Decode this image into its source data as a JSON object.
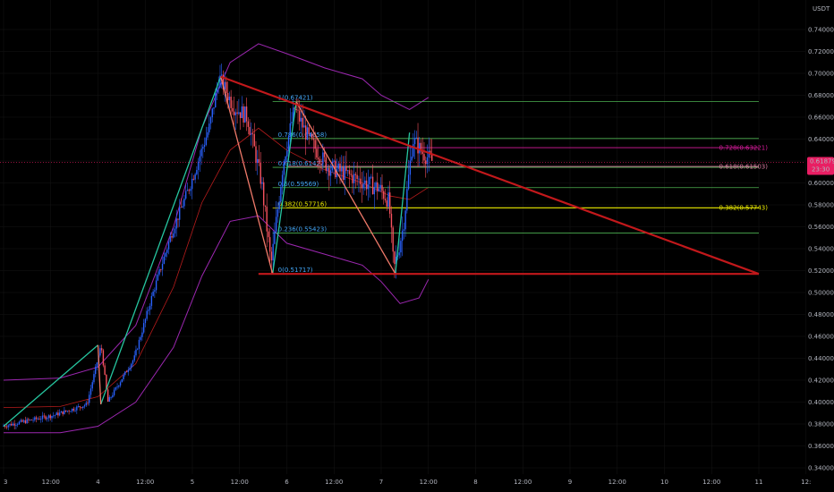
{
  "header": {
    "currency": "USDT"
  },
  "price_tag": {
    "value": "0.61879",
    "countdown": "23:30",
    "color": "#e91e63"
  },
  "colors": {
    "up": "#2962ff",
    "down": "#f7525f",
    "band": "#9c27b0",
    "basis": "#b71c1c",
    "trendline": "#c2181b",
    "leg_green": "#26c6a0",
    "leg_salmon": "#f07a6a",
    "fib_green": "#4caf50",
    "fib_blue_text": "#42a5f5",
    "fib_magenta": "#d81b9c",
    "fib_yellow": "#e6e600",
    "fib_pink": "#d87aa0",
    "grid": "#151515"
  },
  "chart_data": {
    "type": "candlestick",
    "quote": "USDT",
    "ylim": [
      0.34,
      0.74
    ],
    "y_ticks": [
      "0.74000",
      "0.72000",
      "0.70000",
      "0.68000",
      "0.66000",
      "0.64000",
      "0.62000",
      "0.60000",
      "0.58000",
      "0.56000",
      "0.54000",
      "0.52000",
      "0.50000",
      "0.48000",
      "0.46000",
      "0.44000",
      "0.42000",
      "0.40000",
      "0.38000",
      "0.36000",
      "0.34000"
    ],
    "x_ticks": [
      "3",
      "12:00",
      "4",
      "12:00",
      "5",
      "12:00",
      "6",
      "12:00",
      "7",
      "12:00",
      "8",
      "12:00",
      "9",
      "12:00",
      "10",
      "12:00",
      "11",
      "12:"
    ],
    "last_price": 0.61879,
    "price_path": [
      [
        0,
        0.378
      ],
      [
        0.55,
        0.388
      ],
      [
        0.9,
        0.398
      ],
      [
        1.05,
        0.452
      ],
      [
        1.12,
        0.4
      ],
      [
        1.4,
        0.44
      ],
      [
        1.6,
        0.5
      ],
      [
        1.8,
        0.555
      ],
      [
        2.0,
        0.6
      ],
      [
        2.2,
        0.652
      ],
      [
        2.3,
        0.697
      ],
      [
        2.45,
        0.67
      ],
      [
        2.6,
        0.66
      ],
      [
        2.75,
        0.6
      ],
      [
        2.85,
        0.525
      ],
      [
        2.98,
        0.62
      ],
      [
        3.1,
        0.668
      ],
      [
        3.25,
        0.64
      ],
      [
        3.45,
        0.615
      ],
      [
        3.65,
        0.608
      ],
      [
        3.85,
        0.6
      ],
      [
        4.0,
        0.595
      ],
      [
        4.1,
        0.583
      ],
      [
        4.15,
        0.52
      ],
      [
        4.25,
        0.56
      ],
      [
        4.35,
        0.64
      ],
      [
        4.45,
        0.628
      ],
      [
        4.55,
        0.62
      ]
    ],
    "zigzag_green": [
      [
        [
          0,
          0.378
        ],
        [
          1.0,
          0.452
        ]
      ],
      [
        [
          1.03,
          0.398
        ],
        [
          2.3,
          0.697
        ]
      ],
      [
        [
          2.85,
          0.517
        ],
        [
          3.1,
          0.674
        ]
      ],
      [
        [
          4.15,
          0.517
        ],
        [
          4.3,
          0.646
        ]
      ]
    ],
    "zigzag_salmon": [
      [
        [
          1.0,
          0.452
        ],
        [
          1.03,
          0.398
        ]
      ],
      [
        [
          2.3,
          0.697
        ],
        [
          2.85,
          0.517
        ]
      ],
      [
        [
          3.1,
          0.674
        ],
        [
          4.15,
          0.517
        ]
      ]
    ],
    "trendlines": [
      {
        "from": [
          2.3,
          0.697
        ],
        "to": [
          8.0,
          0.517
        ]
      },
      {
        "from": [
          2.7,
          0.517
        ],
        "to": [
          8.0,
          0.517
        ]
      }
    ],
    "bands_upper": [
      [
        0,
        0.42
      ],
      [
        0.6,
        0.422
      ],
      [
        1.0,
        0.432
      ],
      [
        1.4,
        0.47
      ],
      [
        1.8,
        0.56
      ],
      [
        2.1,
        0.65
      ],
      [
        2.4,
        0.71
      ],
      [
        2.7,
        0.727
      ],
      [
        3.0,
        0.718
      ],
      [
        3.4,
        0.705
      ],
      [
        3.8,
        0.695
      ],
      [
        4.0,
        0.68
      ],
      [
        4.3,
        0.667
      ],
      [
        4.5,
        0.678
      ]
    ],
    "bands_lower": [
      [
        0,
        0.372
      ],
      [
        0.6,
        0.372
      ],
      [
        1.0,
        0.378
      ],
      [
        1.4,
        0.4
      ],
      [
        1.8,
        0.45
      ],
      [
        2.1,
        0.515
      ],
      [
        2.4,
        0.565
      ],
      [
        2.7,
        0.57
      ],
      [
        3.0,
        0.545
      ],
      [
        3.4,
        0.535
      ],
      [
        3.8,
        0.525
      ],
      [
        4.0,
        0.51
      ],
      [
        4.2,
        0.49
      ],
      [
        4.4,
        0.495
      ],
      [
        4.5,
        0.512
      ]
    ],
    "bands_basis": [
      [
        0,
        0.395
      ],
      [
        0.6,
        0.396
      ],
      [
        1.0,
        0.405
      ],
      [
        1.4,
        0.435
      ],
      [
        1.8,
        0.505
      ],
      [
        2.1,
        0.582
      ],
      [
        2.4,
        0.63
      ],
      [
        2.7,
        0.65
      ],
      [
        3.0,
        0.63
      ],
      [
        3.4,
        0.612
      ],
      [
        3.8,
        0.6
      ],
      [
        4.1,
        0.588
      ],
      [
        4.3,
        0.585
      ],
      [
        4.5,
        0.596
      ]
    ],
    "fib_left": [
      {
        "label": "1(0.67421)",
        "value": 0.67421,
        "x_start": 2.85,
        "color": "fib_green"
      },
      {
        "label": "0.786(0.64058)",
        "value": 0.64058,
        "x_start": 2.85,
        "color": "fib_green"
      },
      {
        "label": "0.618(0.61422)",
        "value": 0.61422,
        "x_start": 2.85,
        "color": "fib_green"
      },
      {
        "label": "0.5(0.59569)",
        "value": 0.59569,
        "x_start": 2.85,
        "color": "fib_green"
      },
      {
        "label": "0.382(0.57716)",
        "value": 0.57716,
        "x_start": 2.85,
        "color": "fib_yellow"
      },
      {
        "label": "0.236(0.55423)",
        "value": 0.55423,
        "x_start": 2.85,
        "color": "fib_green"
      },
      {
        "label": "0(0.51717)",
        "value": 0.51717,
        "x_start": 2.85,
        "color": "fib_green"
      }
    ],
    "fib_right": [
      {
        "label": "0.728(0.63221)",
        "value": 0.63221,
        "x_start": 3.0,
        "color": "fib_magenta"
      },
      {
        "label": "0.618(0.61503)",
        "value": 0.61503,
        "x_start": 3.0,
        "color": "fib_pink"
      },
      {
        "label": "0.382(0.57743)",
        "value": 0.57743,
        "x_start": 3.0,
        "color": "fib_yellow"
      }
    ]
  }
}
